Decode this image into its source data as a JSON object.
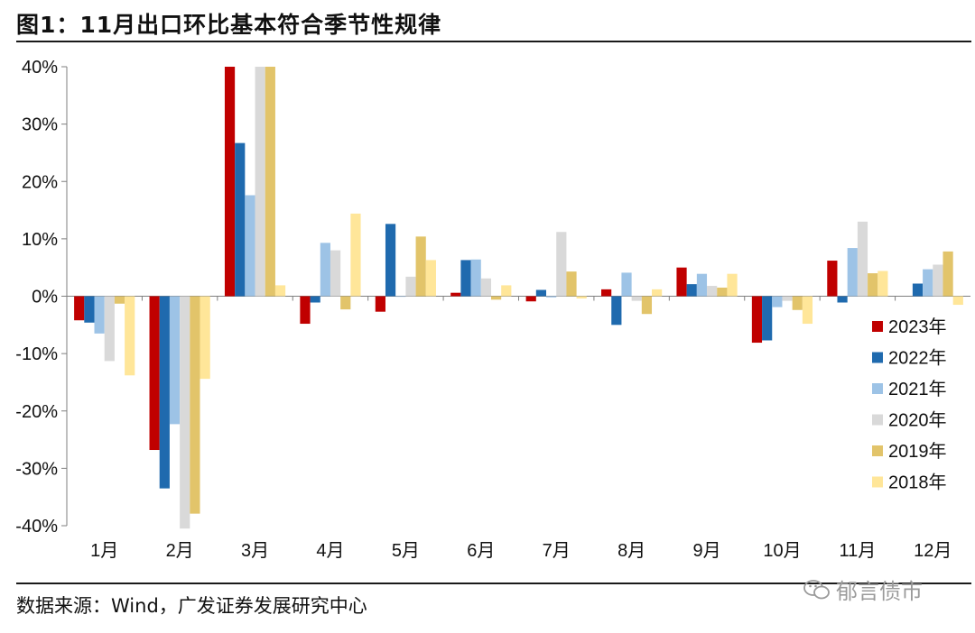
{
  "header": {
    "title": "图1：11月出口环比基本符合季节性规律"
  },
  "footer": {
    "source": "数据来源：Wind，广发证券发展研究中心"
  },
  "watermark": {
    "text": "郁言债市"
  },
  "chart_data": {
    "type": "bar",
    "title": "11月出口环比基本符合季节性规律",
    "xlabel": "",
    "ylabel": "",
    "ylim": [
      -40,
      40
    ],
    "yticks": [
      40,
      30,
      20,
      10,
      0,
      -10,
      -20,
      -30,
      -40
    ],
    "ytick_labels": [
      "40%",
      "30%",
      "20%",
      "10%",
      "0%",
      "-10%",
      "-20%",
      "-30%",
      "-40%"
    ],
    "categories": [
      "1月",
      "2月",
      "3月",
      "4月",
      "5月",
      "6月",
      "7月",
      "8月",
      "9月",
      "10月",
      "11月",
      "12月"
    ],
    "legend_position": "right",
    "series": [
      {
        "name": "2023年",
        "color": "#C00000",
        "values": [
          -4.2,
          -26.8,
          40,
          -4.8,
          -2.7,
          0.6,
          -0.9,
          1.2,
          5.0,
          -8.1,
          6.2,
          null
        ]
      },
      {
        "name": "2022年",
        "color": "#1F6AAE",
        "values": [
          -4.6,
          -33.5,
          26.7,
          -1.1,
          12.6,
          6.3,
          1.1,
          -5.0,
          2.1,
          -7.7,
          -1.1,
          2.2
        ]
      },
      {
        "name": "2021年",
        "color": "#9DC3E6",
        "values": [
          -6.5,
          -22.3,
          17.6,
          9.3,
          -0.1,
          6.4,
          -0.2,
          4.1,
          3.9,
          -1.9,
          8.4,
          4.7
        ]
      },
      {
        "name": "2020年",
        "color": "#D9D9D9",
        "values": [
          -11.3,
          -40.5,
          40,
          8.0,
          3.4,
          3.1,
          11.2,
          -0.8,
          1.8,
          -0.8,
          13.0,
          5.5
        ]
      },
      {
        "name": "2019年",
        "color": "#E2C46A",
        "values": [
          -1.3,
          -37.9,
          40,
          -2.3,
          10.4,
          -0.6,
          4.3,
          -3.1,
          1.5,
          -2.4,
          4.0,
          7.8
        ]
      },
      {
        "name": "2018年",
        "color": "#FFE699",
        "values": [
          -13.8,
          -14.4,
          1.9,
          14.4,
          6.3,
          1.9,
          -0.4,
          1.2,
          3.9,
          -4.8,
          4.4,
          -1.5
        ]
      }
    ]
  }
}
